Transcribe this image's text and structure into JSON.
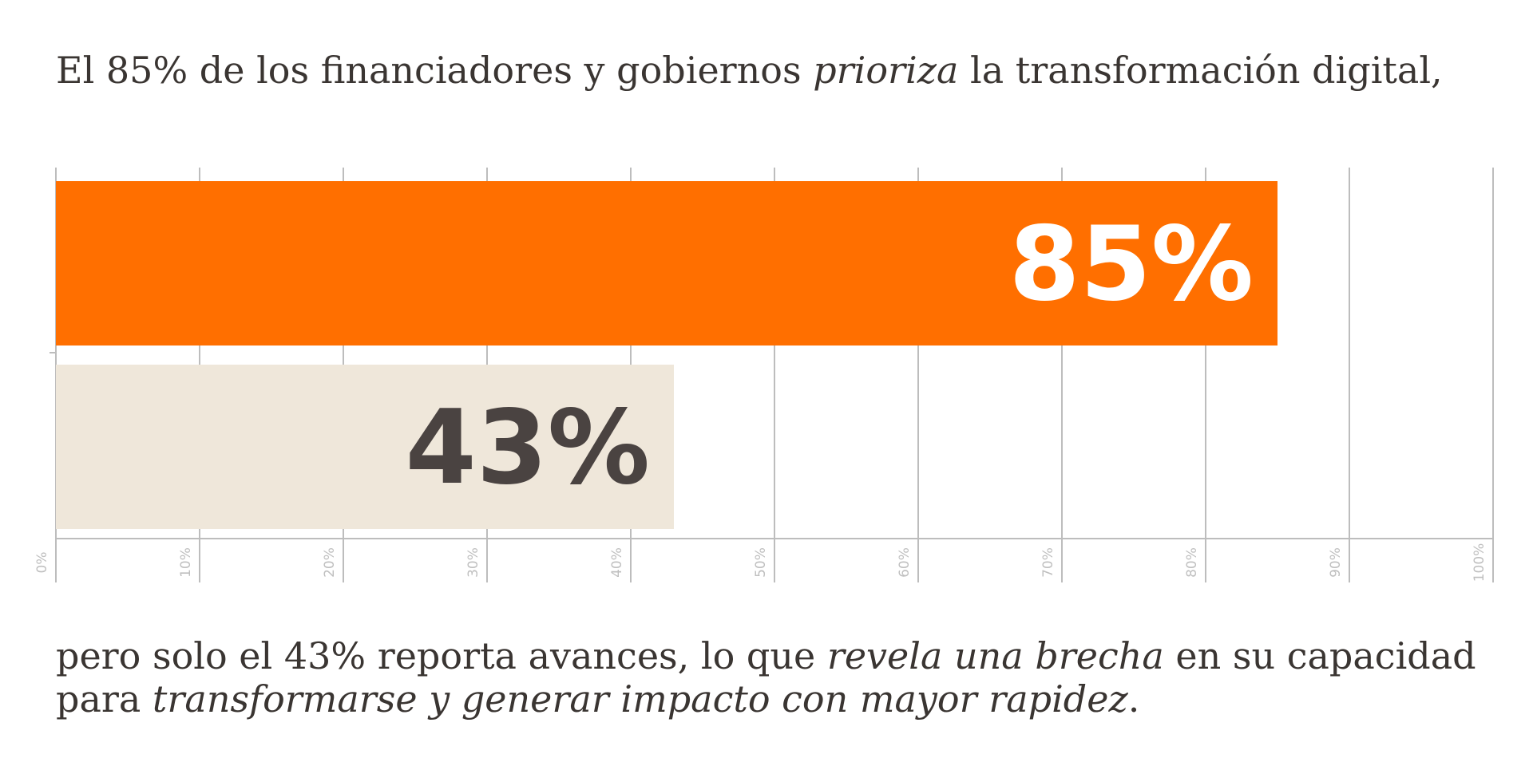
{
  "intro": {
    "part1": "El 85% de los financiadores y gobiernos ",
    "emphasis": "prioriza",
    "part2": " la transformación digital,"
  },
  "conclusion": {
    "line1_part1": "pero solo el 43% reporta avances, lo que ",
    "line1_emphasis": "revela una brecha",
    "line1_part2": " en su capacidad",
    "line2_part1": "para ",
    "line2_emphasis": "transformarse y generar impacto con mayor rapidez",
    "line2_part2": "."
  },
  "chart_data": {
    "type": "bar",
    "orientation": "horizontal",
    "categories": [
      "",
      ""
    ],
    "values": [
      85,
      43
    ],
    "data_labels": [
      "85%",
      "43%"
    ],
    "colors": [
      "#ff6f00",
      "#efe7da"
    ],
    "label_colors": [
      "#ffffff",
      "#4a4341"
    ],
    "xlim": [
      0,
      100
    ],
    "x_ticks": [
      "0%",
      "10%",
      "20%",
      "30%",
      "40%",
      "50%",
      "60%",
      "70%",
      "80%",
      "90%",
      "100%"
    ],
    "grid": true,
    "legend": "none",
    "title": "",
    "xlabel": "",
    "ylabel": ""
  }
}
